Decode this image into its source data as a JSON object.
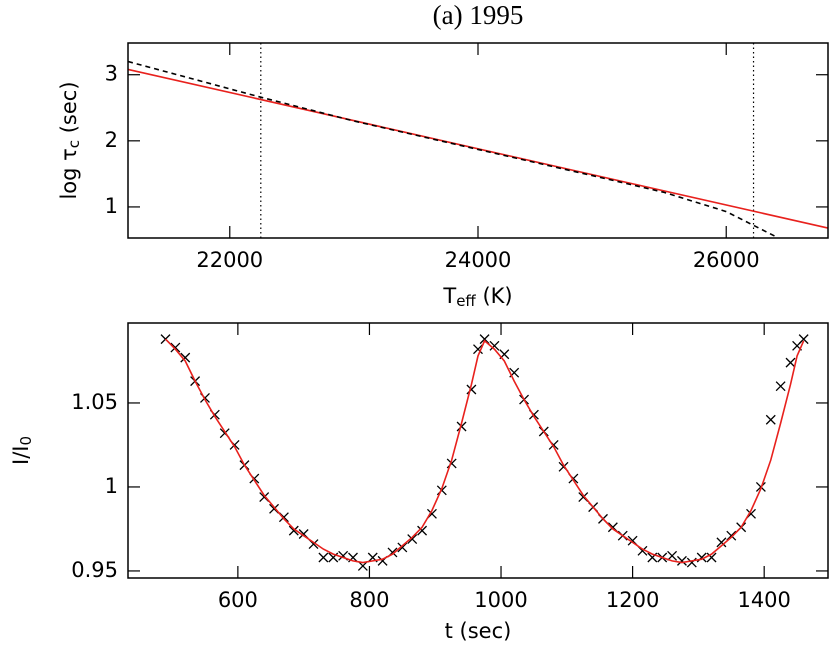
{
  "chart_data": [
    {
      "type": "line",
      "title": "(a) 1995",
      "xlabel": [
        "T",
        "eff",
        " (K)"
      ],
      "ylabel": [
        "log τ",
        "c",
        " (sec)"
      ],
      "xlim": [
        21180,
        26820
      ],
      "ylim": [
        0.53,
        3.48
      ],
      "xticks": [
        22000,
        24000,
        26000
      ],
      "yticks": [
        1,
        2,
        3
      ],
      "vlines": [
        22250,
        26220
      ],
      "vline_color": "#000000",
      "series": [
        {
          "color": "#e8211d",
          "style": "solid",
          "x": [
            21180,
            26820
          ],
          "values": [
            3.08,
            0.68
          ]
        },
        {
          "color": "#000000",
          "style": "dashed",
          "x": [
            21180,
            22250,
            23000,
            24000,
            25000,
            25500,
            26000,
            26400
          ],
          "values": [
            3.2,
            2.66,
            2.3,
            1.87,
            1.44,
            1.22,
            0.93,
            0.55
          ]
        }
      ]
    },
    {
      "type": "line",
      "xlabel": [
        "t (sec)"
      ],
      "ylabel": [
        "I/I",
        "0"
      ],
      "xlim": [
        433,
        1497
      ],
      "ylim": [
        0.9458,
        1.0976
      ],
      "xticks": [
        600,
        800,
        1000,
        1200,
        1400
      ],
      "yticks": [
        0.95,
        1,
        1.05
      ],
      "series": [
        {
          "color": "#000000",
          "style": "cross",
          "x": [
            490,
            505,
            520,
            535,
            550,
            565,
            580,
            595,
            610,
            625,
            640,
            655,
            670,
            685,
            700,
            715,
            730,
            745,
            760,
            775,
            790,
            805,
            820,
            835,
            850,
            865,
            880,
            895,
            910,
            925,
            940,
            955,
            965,
            975,
            990,
            1005,
            1020,
            1035,
            1050,
            1065,
            1080,
            1095,
            1110,
            1125,
            1140,
            1155,
            1170,
            1185,
            1200,
            1215,
            1230,
            1245,
            1260,
            1275,
            1290,
            1305,
            1320,
            1335,
            1350,
            1365,
            1380,
            1395,
            1410,
            1425,
            1440,
            1450,
            1460
          ],
          "values": [
            1.088,
            1.083,
            1.077,
            1.063,
            1.053,
            1.043,
            1.032,
            1.025,
            1.013,
            1.005,
            0.994,
            0.987,
            0.982,
            0.974,
            0.972,
            0.966,
            0.958,
            0.958,
            0.959,
            0.958,
            0.953,
            0.958,
            0.956,
            0.961,
            0.964,
            0.969,
            0.974,
            0.984,
            0.998,
            1.014,
            1.036,
            1.058,
            1.082,
            1.088,
            1.084,
            1.079,
            1.068,
            1.052,
            1.043,
            1.033,
            1.025,
            1.012,
            1.005,
            0.994,
            0.988,
            0.981,
            0.976,
            0.971,
            0.968,
            0.962,
            0.958,
            0.958,
            0.959,
            0.956,
            0.955,
            0.958,
            0.958,
            0.967,
            0.971,
            0.976,
            0.984,
            1.0,
            1.04,
            1.06,
            1.074,
            1.084,
            1.088
          ]
        },
        {
          "color": "#e8211d",
          "style": "solid",
          "x": [
            490,
            505,
            520,
            535,
            550,
            565,
            580,
            595,
            610,
            625,
            640,
            655,
            670,
            685,
            700,
            715,
            730,
            745,
            760,
            775,
            790,
            805,
            820,
            835,
            850,
            865,
            880,
            895,
            910,
            925,
            940,
            955,
            965,
            975,
            990,
            1005,
            1020,
            1035,
            1050,
            1065,
            1080,
            1095,
            1110,
            1125,
            1140,
            1155,
            1170,
            1185,
            1200,
            1215,
            1230,
            1245,
            1260,
            1275,
            1290,
            1305,
            1320,
            1335,
            1350,
            1365,
            1380,
            1395,
            1410,
            1425,
            1440,
            1450,
            1460
          ],
          "values": [
            1.088,
            1.082,
            1.075,
            1.063,
            1.052,
            1.042,
            1.033,
            1.024,
            1.013,
            1.004,
            0.995,
            0.988,
            0.981,
            0.975,
            0.971,
            0.967,
            0.963,
            0.96,
            0.958,
            0.956,
            0.955,
            0.956,
            0.957,
            0.96,
            0.965,
            0.97,
            0.976,
            0.986,
            0.999,
            1.016,
            1.038,
            1.061,
            1.078,
            1.087,
            1.082,
            1.075,
            1.063,
            1.052,
            1.042,
            1.033,
            1.024,
            1.013,
            1.004,
            0.995,
            0.988,
            0.981,
            0.975,
            0.971,
            0.967,
            0.963,
            0.96,
            0.958,
            0.956,
            0.955,
            0.956,
            0.957,
            0.96,
            0.965,
            0.97,
            0.976,
            0.986,
            0.999,
            1.016,
            1.038,
            1.061,
            1.078,
            1.087
          ]
        }
      ]
    }
  ]
}
